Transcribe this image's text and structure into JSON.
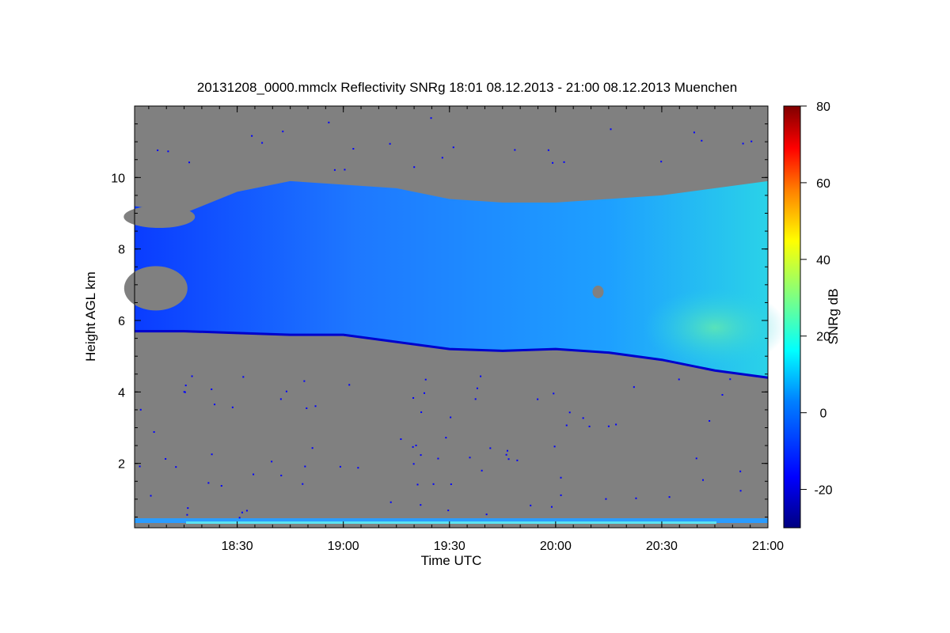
{
  "chart_data": {
    "type": "heatmap",
    "title": "20131208_0000.mmclx Reflectivity SNRg   18:01 08.12.2013 - 21:00 08.12.2013 Muenchen",
    "xlabel": "Time UTC",
    "ylabel": "Height AGL km",
    "colorbar_label": "SNRg dB",
    "x_range_minutes_utc": [
      1081,
      1260
    ],
    "x_ticks": [
      {
        "label": "18:30",
        "minutes": 1110
      },
      {
        "label": "19:00",
        "minutes": 1140
      },
      {
        "label": "19:30",
        "minutes": 1170
      },
      {
        "label": "20:00",
        "minutes": 1200
      },
      {
        "label": "20:30",
        "minutes": 1230
      },
      {
        "label": "21:00",
        "minutes": 1260
      }
    ],
    "y_range_km": [
      0.2,
      12.0
    ],
    "y_ticks": [
      {
        "label": "2",
        "value": 2
      },
      {
        "label": "4",
        "value": 4
      },
      {
        "label": "6",
        "value": 6
      },
      {
        "label": "8",
        "value": 8
      },
      {
        "label": "10",
        "value": 10
      }
    ],
    "colorbar_range_db": [
      -30,
      80
    ],
    "colorbar_ticks": [
      {
        "label": "80",
        "value": 80
      },
      {
        "label": "60",
        "value": 60
      },
      {
        "label": "40",
        "value": 40
      },
      {
        "label": "20",
        "value": 20
      },
      {
        "label": "0",
        "value": 0
      },
      {
        "label": "-20",
        "value": -20
      }
    ],
    "colormap": [
      "#000080",
      "#0000ff",
      "#0080ff",
      "#00ffff",
      "#80ff80",
      "#ffff00",
      "#ff8000",
      "#ff0000",
      "#800000"
    ],
    "no_signal_color": "#808080",
    "cloud_layer": {
      "description_times": "base and top height of echo layer (km) vs time",
      "time_minutes": [
        1081,
        1095,
        1110,
        1125,
        1140,
        1155,
        1170,
        1185,
        1200,
        1215,
        1230,
        1245,
        1260
      ],
      "base_km": [
        5.7,
        5.7,
        5.65,
        5.6,
        5.6,
        5.4,
        5.2,
        5.15,
        5.2,
        5.1,
        4.9,
        4.6,
        4.4
      ],
      "top_km": [
        9.2,
        9.0,
        9.6,
        9.9,
        9.8,
        9.7,
        9.4,
        9.3,
        9.3,
        9.4,
        9.5,
        9.7,
        9.9
      ],
      "peak_snr_db": 15,
      "typical_snr_db": 0
    }
  }
}
